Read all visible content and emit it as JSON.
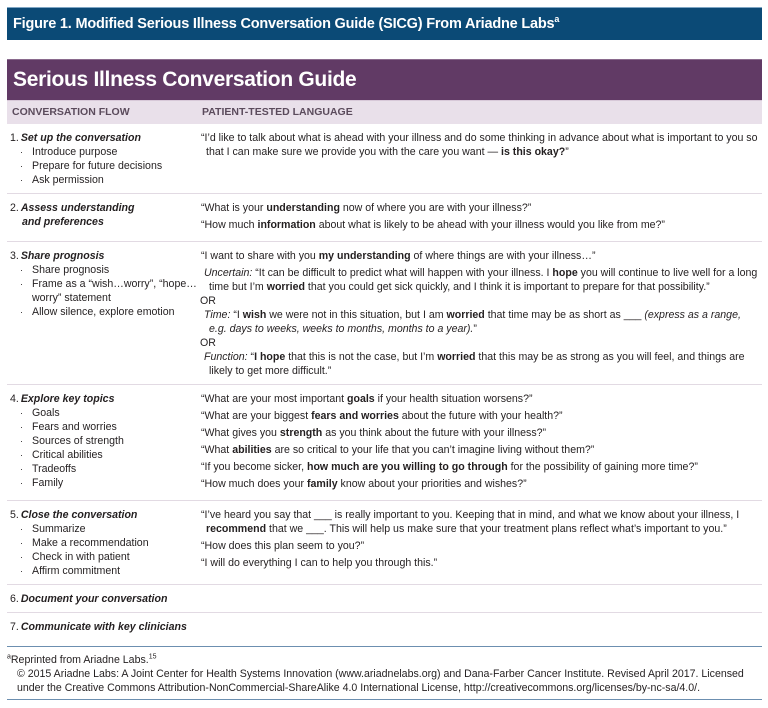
{
  "figure": {
    "title": "Figure 1. Modified Serious Illness Conversation Guide (SICG) From Ariadne Labs",
    "title_sup": "a",
    "title_bg": "#0b4a76"
  },
  "guide": {
    "title": "Serious Illness Conversation Guide",
    "header_bg": "#613a65",
    "col_flow": "CONVERSATION FLOW",
    "col_language": "PATIENT-TESTED LANGUAGE"
  },
  "rows": [
    {
      "num": "1.",
      "title": [
        "Set up the conversation"
      ],
      "bullets": [
        "Introduce purpose",
        "Prepare for future decisions",
        "Ask permission"
      ],
      "right": [
        {
          "type": "q",
          "segs": [
            {
              "t": "“I’d like to talk about what is ahead with your illness and do some thinking in advance about what is important to you so that I can make sure we provide you with the care you want — "
            },
            {
              "t": "is this okay?",
              "b": true
            },
            {
              "t": "”"
            }
          ]
        }
      ]
    },
    {
      "num": "2.",
      "title": [
        "Assess understanding",
        "and preferences"
      ],
      "bullets": [],
      "right": [
        {
          "type": "q",
          "segs": [
            {
              "t": "“What is your "
            },
            {
              "t": "understanding",
              "b": true
            },
            {
              "t": " now of where you are with your illness?”"
            }
          ]
        },
        {
          "type": "q",
          "segs": [
            {
              "t": "“How much "
            },
            {
              "t": "information",
              "b": true
            },
            {
              "t": " about what is likely to be ahead with your illness would you like from me?”"
            }
          ]
        }
      ]
    },
    {
      "num": "3.",
      "title": [
        "Share prognosis"
      ],
      "bullets": [
        "Share prognosis",
        "Frame as a “wish…worry”, “hope…worry” statement",
        "Allow silence, explore emotion"
      ],
      "right": [
        {
          "type": "q",
          "segs": [
            {
              "t": "“I want to share with you "
            },
            {
              "t": "my understanding",
              "b": true
            },
            {
              "t": " of where things are with your illness…”"
            }
          ]
        },
        {
          "type": "sub",
          "segs": [
            {
              "t": "Uncertain:",
              "i": true
            },
            {
              "t": " “It can be difficult to predict what will happen with your illness. I "
            },
            {
              "t": "hope",
              "b": true
            },
            {
              "t": " you will continue to live well for a long time but I’m "
            },
            {
              "t": "worried",
              "b": true
            },
            {
              "t": " that you could get sick quickly, and I think it is important to prepare for that possibility.”"
            }
          ]
        },
        {
          "type": "or",
          "segs": [
            {
              "t": "OR"
            }
          ]
        },
        {
          "type": "sub",
          "segs": [
            {
              "t": "Time:",
              "i": true
            },
            {
              "t": " “I "
            },
            {
              "t": "wish",
              "b": true
            },
            {
              "t": " we were not in this situation, but I am "
            },
            {
              "t": "worried",
              "b": true
            },
            {
              "t": " that time may be as short as ___ "
            },
            {
              "t": "(express as a range, e.g. days to weeks, weeks to months, months to a year).",
              "i": true
            },
            {
              "t": "”"
            }
          ]
        },
        {
          "type": "or",
          "segs": [
            {
              "t": "OR"
            }
          ]
        },
        {
          "type": "sub",
          "segs": [
            {
              "t": "Function:",
              "i": true
            },
            {
              "t": " “"
            },
            {
              "t": "I hope",
              "b": true
            },
            {
              "t": " that this is not the case, but I’m "
            },
            {
              "t": "worried",
              "b": true
            },
            {
              "t": " that this may be as strong as you will feel, and things are likely to get more difficult.”"
            }
          ]
        }
      ]
    },
    {
      "num": "4.",
      "title": [
        "Explore key topics"
      ],
      "bullets": [
        "Goals",
        "Fears and worries",
        "Sources of strength",
        "Critical abilities",
        "Tradeoffs",
        "Family"
      ],
      "right": [
        {
          "type": "q",
          "segs": [
            {
              "t": "“What are your most important "
            },
            {
              "t": "goals",
              "b": true
            },
            {
              "t": " if your health situation worsens?”"
            }
          ]
        },
        {
          "type": "q",
          "segs": [
            {
              "t": "“What are your biggest "
            },
            {
              "t": "fears and worries",
              "b": true
            },
            {
              "t": " about the future with your health?”"
            }
          ]
        },
        {
          "type": "q",
          "segs": [
            {
              "t": "“What gives you "
            },
            {
              "t": "strength",
              "b": true
            },
            {
              "t": " as you think about the future with your illness?”"
            }
          ]
        },
        {
          "type": "q",
          "segs": [
            {
              "t": "“What "
            },
            {
              "t": "abilities",
              "b": true
            },
            {
              "t": " are so critical to your life that you can’t imagine living without them?”"
            }
          ]
        },
        {
          "type": "q",
          "segs": [
            {
              "t": "“If you become sicker, "
            },
            {
              "t": "how much are you willing to go through",
              "b": true
            },
            {
              "t": " for the possibility of gaining more time?”"
            }
          ]
        },
        {
          "type": "q",
          "segs": [
            {
              "t": "“How much does your "
            },
            {
              "t": "family",
              "b": true
            },
            {
              "t": " know about your priorities and wishes?”"
            }
          ]
        }
      ]
    },
    {
      "num": "5.",
      "title": [
        "Close the conversation"
      ],
      "bullets": [
        "Summarize",
        "Make a recommendation",
        "Check in with patient",
        "Affirm commitment"
      ],
      "right": [
        {
          "type": "q",
          "segs": [
            {
              "t": "“I’ve heard you say that ___ is really important to you. Keeping that in mind, and what we know about your illness, I "
            },
            {
              "t": "recommend",
              "b": true
            },
            {
              "t": " that we ___. This will help us make sure that your treatment plans reflect what’s important to you.”"
            }
          ]
        },
        {
          "type": "q",
          "segs": [
            {
              "t": "“How does this plan seem to you?”"
            }
          ]
        },
        {
          "type": "q",
          "segs": [
            {
              "t": "“I will do everything I can to help you through this.”"
            }
          ]
        }
      ]
    },
    {
      "num": "6.",
      "title": [
        "Document your conversation"
      ],
      "bullets": [],
      "right": []
    },
    {
      "num": "7.",
      "title": [
        "Communicate with key clinicians"
      ],
      "bullets": [],
      "right": []
    }
  ],
  "footnote": {
    "sup": "a",
    "text": "Reprinted from Ariadne Labs.",
    "ref": "15",
    "copyright": "© 2015 Ariadne Labs: A Joint Center for Health Systems Innovation (www.ariadnelabs.org) and Dana-Farber Cancer Institute. Revised April 2017. Licensed under the Creative Commons Attribution-NonCommercial-ShareAlike 4.0 International License, http://creativecommons.org/licenses/by-nc-sa/4.0/."
  }
}
